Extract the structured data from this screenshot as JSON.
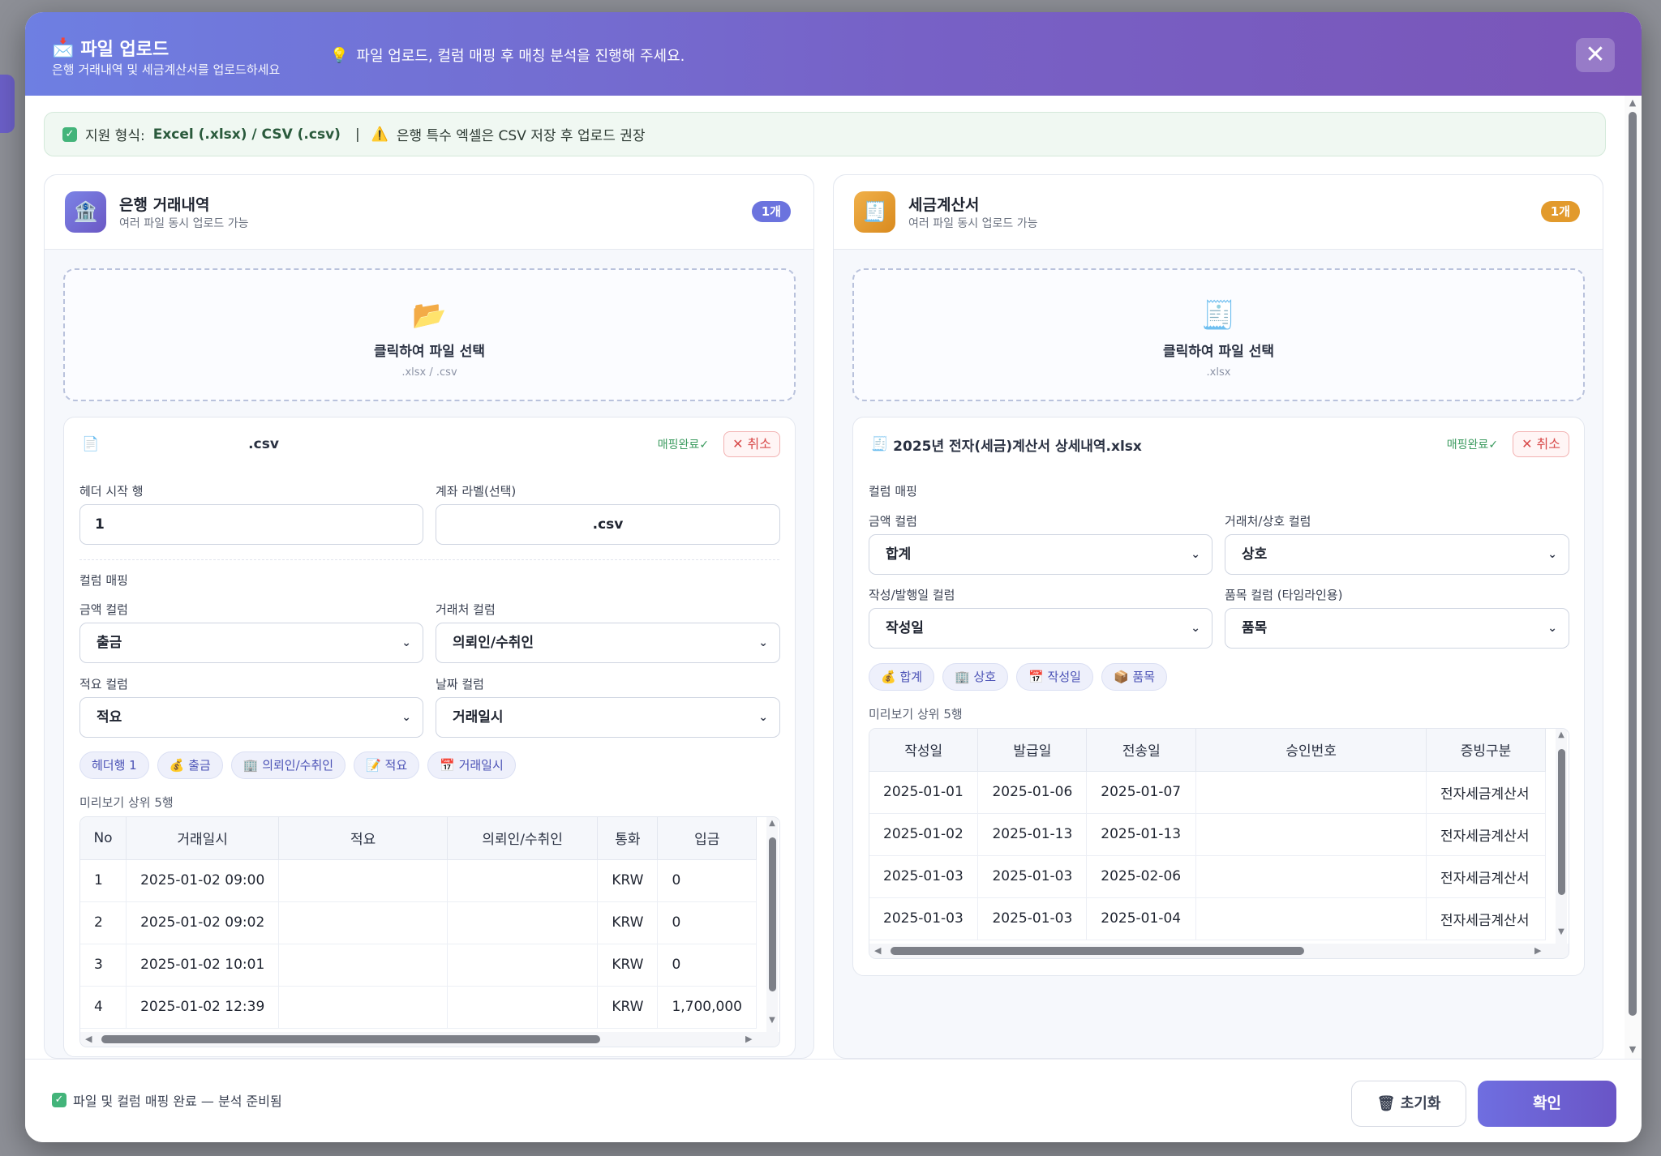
{
  "header": {
    "icon": "📩",
    "title": "파일 업로드",
    "subtitle": "은행 거래내역 및 세금계산서를 업로드하세요",
    "hint_icon": "💡",
    "hint": "파일 업로드, 컬럼 매핑 후 매칭 분석을 진행해 주세요.",
    "close": "✕"
  },
  "notice": {
    "check": "✓",
    "label": "지원 형식:",
    "formats": "Excel (.xlsx) / CSV (.csv)",
    "separator": "|",
    "warn_icon": "⚠️",
    "warning": "은행 특수 엑셀은 CSV 저장 후 업로드 권장"
  },
  "bank": {
    "icon": "🏦",
    "title": "은행 거래내역",
    "subtitle": "여러 파일 동시 업로드 가능",
    "count": "1개",
    "drop_icon": "📂",
    "drop_label": "클릭하여 파일 선택",
    "drop_sub": ".xlsx / .csv",
    "file_icon": "📄",
    "file_name": ".csv",
    "status": "매핑완료✓",
    "cancel": "✕ 취소",
    "header_row_label": "헤더 시작 행",
    "header_row_value": "1",
    "account_label": "계좌 라벨(선택)",
    "account_value": ".csv",
    "mapping_label": "컬럼 매핑",
    "amount_label": "금액 컬럼",
    "amount_value": "출금",
    "party_label": "거래처 컬럼",
    "party_value": "의뢰인/수취인",
    "memo_label": "적요 컬럼",
    "memo_value": "적요",
    "date_label": "날짜 컬럼",
    "date_value": "거래일시",
    "chips": [
      "헤더행 1",
      "💰 출금",
      "🏢 의뢰인/수취인",
      "📝 적요",
      "📅 거래일시"
    ],
    "preview_label": "미리보기 상위 5행",
    "columns": [
      "No",
      "거래일시",
      "적요",
      "의뢰인/수취인",
      "통화",
      "입금"
    ],
    "rows": [
      [
        "1",
        "2025-01-02 09:00",
        "",
        "",
        "KRW",
        "0"
      ],
      [
        "2",
        "2025-01-02 09:02",
        "",
        "",
        "KRW",
        "0"
      ],
      [
        "3",
        "2025-01-02 10:01",
        "",
        "",
        "KRW",
        "0"
      ],
      [
        "4",
        "2025-01-02 12:39",
        "",
        "",
        "KRW",
        "1,700,000"
      ]
    ]
  },
  "tax": {
    "icon": "🧾",
    "title": "세금계산서",
    "subtitle": "여러 파일 동시 업로드 가능",
    "count": "1개",
    "drop_icon": "🧾",
    "drop_label": "클릭하여 파일 선택",
    "drop_sub": ".xlsx",
    "file_icon": "🧾",
    "file_name": "2025년 전자(세금)계산서 상세내역.xlsx",
    "status": "매핑완료✓",
    "cancel": "✕ 취소",
    "mapping_label": "컬럼 매핑",
    "amount_label": "금액 컬럼",
    "amount_value": "합계",
    "party_label": "거래처/상호 컬럼",
    "party_value": "상호",
    "date_label": "작성/발행일 컬럼",
    "date_value": "작성일",
    "item_label": "품목 컬럼 (타임라인용)",
    "item_value": "품목",
    "chips": [
      "💰 합계",
      "🏢 상호",
      "📅 작성일",
      "📦 품목"
    ],
    "preview_label": "미리보기 상위 5행",
    "columns": [
      "작성일",
      "발급일",
      "전송일",
      "승인번호",
      "증빙구분"
    ],
    "rows": [
      [
        "2025-01-01",
        "2025-01-06",
        "2025-01-07",
        "",
        "전자세금계산서"
      ],
      [
        "2025-01-02",
        "2025-01-13",
        "2025-01-13",
        "",
        "전자세금계산서"
      ],
      [
        "2025-01-03",
        "2025-01-03",
        "2025-02-06",
        "",
        "전자세금계산서"
      ],
      [
        "2025-01-03",
        "2025-01-03",
        "2025-01-04",
        "",
        "전자세금계산서"
      ]
    ]
  },
  "footer": {
    "check": "✓",
    "status": "파일 및 컬럼 매핑 완료 — 분석 준비됨",
    "reset": "🗑 초기화",
    "confirm": "확인"
  }
}
